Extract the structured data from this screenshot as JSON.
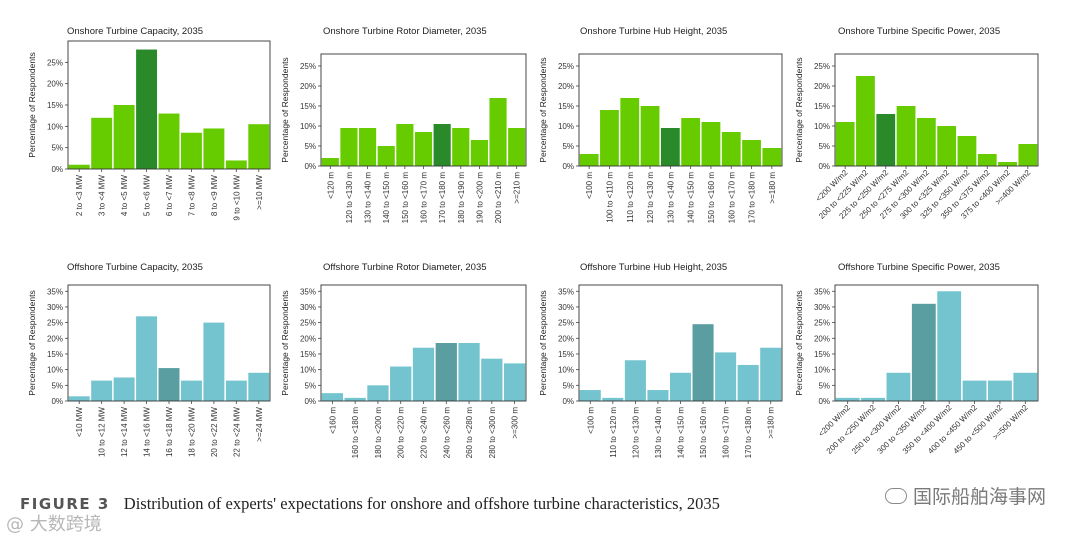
{
  "colors": {
    "onshore_bar": "#66cc00",
    "onshore_highlight": "#2a8a2a",
    "offshore_bar": "#74c4cf",
    "offshore_highlight": "#5a9ea2"
  },
  "caption": {
    "figure_label": "FIGURE 3",
    "text": "Distribution of experts' expectations for onshore and offshore turbine characteristics, 2035"
  },
  "watermarks": {
    "left": "@ 大数跨境",
    "right": "国际船舶海事网"
  },
  "chart_data": [
    {
      "type": "bar",
      "title": "Onshore Turbine Capacity, 2035",
      "ylabel": "Percentage of Respondents",
      "xlabel": "",
      "ylim": [
        0,
        30
      ],
      "yticks": [
        0,
        5,
        10,
        15,
        20,
        25
      ],
      "ytick_labels": [
        "0%",
        "5%",
        "10%",
        "15%",
        "20%",
        "25%"
      ],
      "categories": [
        "2 to <3 MW",
        "3 to <4 MW",
        "4 to <5 MW",
        "5 to <6 MW",
        "6 to <7 MW",
        "7 to <8 MW",
        "8 to <9 MW",
        "9 to <10 MW",
        ">=10 MW"
      ],
      "values": [
        1,
        12,
        15,
        28,
        13,
        8.5,
        9.5,
        2,
        10.5
      ],
      "highlight_index": 3,
      "group": "onshore",
      "label_rotation": "vertical"
    },
    {
      "type": "bar",
      "title": "Onshore Turbine Rotor Diameter, 2035",
      "ylabel": "Percentage of Respondents",
      "xlabel": "",
      "ylim": [
        0,
        28
      ],
      "yticks": [
        0,
        5,
        10,
        15,
        20,
        25
      ],
      "ytick_labels": [
        "0%",
        "5%",
        "10%",
        "15%",
        "20%",
        "25%"
      ],
      "categories": [
        "<120 m",
        "120 to <130 m",
        "130 to <140 m",
        "140 to <150 m",
        "150 to <160 m",
        "160 to <170 m",
        "170 to <180 m",
        "180 to <190 m",
        "190 to <200 m",
        "200 to <210 m",
        ">=210 m"
      ],
      "values": [
        2,
        9.5,
        9.5,
        5,
        10.5,
        8.5,
        10.5,
        9.5,
        6.5,
        17,
        9.5
      ],
      "highlight_index": 6,
      "group": "onshore",
      "label_rotation": "vertical"
    },
    {
      "type": "bar",
      "title": "Onshore Turbine Hub Height, 2035",
      "ylabel": "Percentage of Respondents",
      "xlabel": "",
      "ylim": [
        0,
        28
      ],
      "yticks": [
        0,
        5,
        10,
        15,
        20,
        25
      ],
      "ytick_labels": [
        "0%",
        "5%",
        "10%",
        "15%",
        "20%",
        "25%"
      ],
      "categories": [
        "<100 m",
        "100 to <110 m",
        "110 to <120 m",
        "120 to <130 m",
        "130 to <140 m",
        "140 to <150 m",
        "150 to <160 m",
        "160 to <170 m",
        "170 to <180 m",
        ">=180 m"
      ],
      "values": [
        3,
        14,
        17,
        15,
        9.5,
        12,
        11,
        8.5,
        6.5,
        4.5
      ],
      "highlight_index": 4,
      "group": "onshore",
      "label_rotation": "vertical"
    },
    {
      "type": "bar",
      "title": "Onshore Turbine Specific Power, 2035",
      "ylabel": "Percentage of Respondents",
      "xlabel": "",
      "ylim": [
        0,
        28
      ],
      "yticks": [
        0,
        5,
        10,
        15,
        20,
        25
      ],
      "ytick_labels": [
        "0%",
        "5%",
        "10%",
        "15%",
        "20%",
        "25%"
      ],
      "categories": [
        "<200 W/m2",
        "200 to <225 W/m2",
        "225 to <250 W/m2",
        "250 to <275 W/m2",
        "275 to <300 W/m2",
        "300 to <325 W/m2",
        "325 to <350 W/m2",
        "350 to <375 W/m2",
        "375 to <400 W/m2",
        ">=400 W/m2"
      ],
      "values": [
        11,
        22.5,
        13,
        15,
        12,
        10,
        7.5,
        3,
        1,
        5.5
      ],
      "highlight_index": 2,
      "group": "onshore",
      "label_rotation": "diagonal"
    },
    {
      "type": "bar",
      "title": "Offshore Turbine Capacity, 2035",
      "ylabel": "Percentage of Respondents",
      "xlabel": "",
      "ylim": [
        0,
        37
      ],
      "yticks": [
        0,
        5,
        10,
        15,
        20,
        25,
        30,
        35
      ],
      "ytick_labels": [
        "0%",
        "5%",
        "10%",
        "15%",
        "20%",
        "25%",
        "30%",
        "35%"
      ],
      "categories": [
        "<10 MW",
        "10 to <12 MW",
        "12 to <14 MW",
        "14 to <16 MW",
        "16 to <18 MW",
        "18 to <20 MW",
        "20 to <22 MW",
        "22 to <24 MW",
        ">=24 MW"
      ],
      "values": [
        1.5,
        6.5,
        7.5,
        27,
        10.5,
        6.5,
        25,
        6.5,
        9
      ],
      "highlight_index": 4,
      "group": "offshore",
      "label_rotation": "vertical"
    },
    {
      "type": "bar",
      "title": "Offshore Turbine Rotor Diameter, 2035",
      "ylabel": "Percentage of Respondents",
      "xlabel": "",
      "ylim": [
        0,
        37
      ],
      "yticks": [
        0,
        5,
        10,
        15,
        20,
        25,
        30,
        35
      ],
      "ytick_labels": [
        "0%",
        "5%",
        "10%",
        "15%",
        "20%",
        "25%",
        "30%",
        "35%"
      ],
      "categories": [
        "<160 m",
        "160 to <180 m",
        "180 to <200 m",
        "200 to <220 m",
        "220 to <240 m",
        "240 to <260 m",
        "260 to <280 m",
        "280 to <300 m",
        ">=300 m"
      ],
      "values": [
        2.5,
        1,
        5,
        11,
        17,
        18.5,
        18.5,
        13.5,
        12
      ],
      "highlight_index": 5,
      "group": "offshore",
      "label_rotation": "vertical"
    },
    {
      "type": "bar",
      "title": "Offshore Turbine Hub Height, 2035",
      "ylabel": "Percentage of Respondents",
      "xlabel": "",
      "ylim": [
        0,
        37
      ],
      "yticks": [
        0,
        5,
        10,
        15,
        20,
        25,
        30,
        35
      ],
      "ytick_labels": [
        "0%",
        "5%",
        "10%",
        "15%",
        "20%",
        "25%",
        "30%",
        "35%"
      ],
      "categories": [
        "<100 m",
        "110 to <120 m",
        "120 to <130 m",
        "130 to <140 m",
        "140 to <150 m",
        "150 to <160 m",
        "160 to <170 m",
        "170 to <180 m",
        ">=180 m"
      ],
      "values": [
        3.5,
        1,
        13,
        3.5,
        9,
        24.5,
        15.5,
        11.5,
        17
      ],
      "highlight_index": 5,
      "group": "offshore",
      "label_rotation": "vertical"
    },
    {
      "type": "bar",
      "title": "Offshore Turbine Specific Power, 2035",
      "ylabel": "Percentage of Respondents",
      "xlabel": "",
      "ylim": [
        0,
        37
      ],
      "yticks": [
        0,
        5,
        10,
        15,
        20,
        25,
        30,
        35
      ],
      "ytick_labels": [
        "0%",
        "5%",
        "10%",
        "15%",
        "20%",
        "25%",
        "30%",
        "35%"
      ],
      "categories": [
        "<200 W/m2",
        "200 to <250 W/m2",
        "250 to <300 W/m2",
        "300 to <350 W/m2",
        "350 to <400 W/m2",
        "400 to <450 W/m2",
        "450 to <500 W/m2",
        ">=500 W/m2"
      ],
      "values": [
        1,
        1,
        9,
        31,
        35,
        6.5,
        6.5,
        9
      ],
      "highlight_index": 3,
      "group": "offshore",
      "label_rotation": "diagonal"
    }
  ]
}
